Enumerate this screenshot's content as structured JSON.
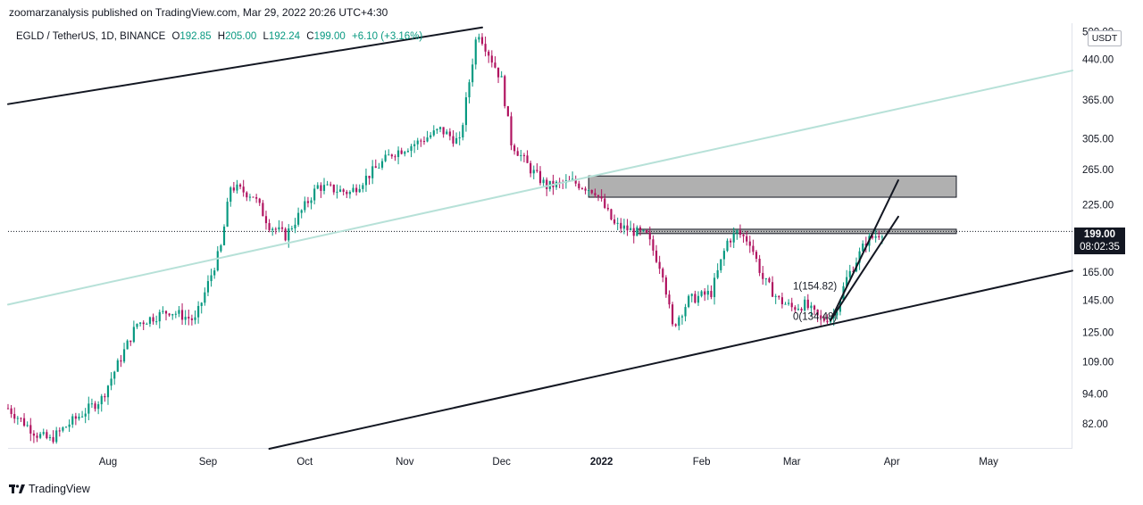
{
  "header": {
    "published": "zoomarzanalysis published on TradingView.com, Mar 29, 2022 20:26 UTC+4:30"
  },
  "legend": {
    "symbol": "EGLD / TetherUS, 1D, BINANCE",
    "open_label": "O",
    "open": "192.85",
    "high_label": "H",
    "high": "205.00",
    "low_label": "L",
    "low": "192.24",
    "close_label": "C",
    "close": "199.00",
    "change": "+6.10 (+3.16%)"
  },
  "price_axis": {
    "unit": "USDT",
    "current_price": "199.00",
    "countdown": "08:02:35"
  },
  "brand": {
    "name": "TradingView"
  },
  "colors": {
    "up": "#089981",
    "down": "#b0125f",
    "channel": "#131722",
    "midline": "#b7e1d8",
    "zone_fill": "#b0b0b0",
    "dotted": "#131722"
  },
  "chart_data": {
    "type": "candlestick",
    "title": "EGLD / TetherUS, 1D, BINANCE",
    "y_scale": "log",
    "y_ticks": [
      82,
      94,
      109,
      125,
      145,
      165,
      199,
      225,
      265,
      305,
      365,
      440,
      500
    ],
    "y_tick_labels": [
      "82.00",
      "94.00",
      "109.00",
      "125.00",
      "145.00",
      "165.00",
      "",
      "225.00",
      "265.00",
      "305.00",
      "365.00",
      "440.00",
      "500.00"
    ],
    "ylim": [
      73,
      520
    ],
    "x_ticks": [
      {
        "date": "2021-08-01",
        "label": "Aug",
        "bold": false
      },
      {
        "date": "2021-09-01",
        "label": "Sep",
        "bold": false
      },
      {
        "date": "2021-10-01",
        "label": "Oct",
        "bold": false
      },
      {
        "date": "2021-11-01",
        "label": "Nov",
        "bold": false
      },
      {
        "date": "2021-12-01",
        "label": "Dec",
        "bold": false
      },
      {
        "date": "2022-01-01",
        "label": "2022",
        "bold": true
      },
      {
        "date": "2022-02-01",
        "label": "Feb",
        "bold": false
      },
      {
        "date": "2022-03-01",
        "label": "Mar",
        "bold": false
      },
      {
        "date": "2022-04-01",
        "label": "Apr",
        "bold": false
      },
      {
        "date": "2022-05-01",
        "label": "May",
        "bold": false
      }
    ],
    "xlim": [
      "2021-07-01",
      "2022-05-27"
    ],
    "price_path": [
      [
        "2021-07-01",
        88
      ],
      [
        "2021-07-10",
        78
      ],
      [
        "2021-07-14",
        76
      ],
      [
        "2021-07-20",
        82
      ],
      [
        "2021-07-30",
        92
      ],
      [
        "2021-08-10",
        130
      ],
      [
        "2021-08-20",
        138
      ],
      [
        "2021-08-28",
        132
      ],
      [
        "2021-09-05",
        185
      ],
      [
        "2021-09-08",
        245
      ],
      [
        "2021-09-15",
        235
      ],
      [
        "2021-09-20",
        205
      ],
      [
        "2021-09-25",
        195
      ],
      [
        "2021-10-05",
        245
      ],
      [
        "2021-10-15",
        238
      ],
      [
        "2021-10-28",
        285
      ],
      [
        "2021-11-05",
        300
      ],
      [
        "2021-11-12",
        318
      ],
      [
        "2021-11-18",
        300
      ],
      [
        "2021-11-23",
        480
      ],
      [
        "2021-11-24",
        498
      ],
      [
        "2021-12-01",
        400
      ],
      [
        "2021-12-04",
        300
      ],
      [
        "2021-12-10",
        265
      ],
      [
        "2021-12-15",
        245
      ],
      [
        "2021-12-23",
        250
      ],
      [
        "2021-12-30",
        240
      ],
      [
        "2022-01-05",
        205
      ],
      [
        "2022-01-10",
        200
      ],
      [
        "2022-01-15",
        195
      ],
      [
        "2022-01-20",
        165
      ],
      [
        "2022-01-23",
        128
      ],
      [
        "2022-01-28",
        145
      ],
      [
        "2022-02-04",
        150
      ],
      [
        "2022-02-09",
        190
      ],
      [
        "2022-02-12",
        198
      ],
      [
        "2022-02-16",
        190
      ],
      [
        "2022-02-20",
        160
      ],
      [
        "2022-02-25",
        145
      ],
      [
        "2022-03-01",
        140
      ],
      [
        "2022-03-05",
        142
      ],
      [
        "2022-03-10",
        132
      ],
      [
        "2022-03-14",
        135
      ],
      [
        "2022-03-18",
        160
      ],
      [
        "2022-03-24",
        190
      ],
      [
        "2022-03-29",
        199
      ]
    ],
    "lines": [
      {
        "name": "channel-top",
        "from": [
          "2021-07-01",
          358
        ],
        "to": [
          "2021-11-25",
          510
        ]
      },
      {
        "name": "channel-bottom",
        "from": [
          "2021-09-20",
          73
        ],
        "to": [
          "2022-05-27",
          166
        ]
      },
      {
        "name": "channel-mid",
        "from": [
          "2021-07-01",
          142
        ],
        "to": [
          "2022-05-27",
          418
        ]
      },
      {
        "name": "wedge-upper",
        "from": [
          "2022-03-13",
          132
        ],
        "to": [
          "2022-04-03",
          252
        ]
      },
      {
        "name": "wedge-lower",
        "from": [
          "2022-03-13",
          132
        ],
        "to": [
          "2022-04-03",
          213
        ]
      }
    ],
    "zones": [
      {
        "name": "supply-zone",
        "x0": "2021-12-28",
        "x1": "2022-04-21",
        "y0": 233,
        "y1": 257
      },
      {
        "name": "resistance-band",
        "x0": "2022-01-12",
        "x1": "2022-04-21",
        "y0": 197,
        "y1": 201
      }
    ],
    "current_price_line": 199,
    "fib_labels": [
      {
        "text": "1(154.82)",
        "date": "2022-03-03",
        "price": 154.82
      },
      {
        "text": "0(134.48)",
        "date": "2022-03-03",
        "price": 134.48
      }
    ]
  }
}
